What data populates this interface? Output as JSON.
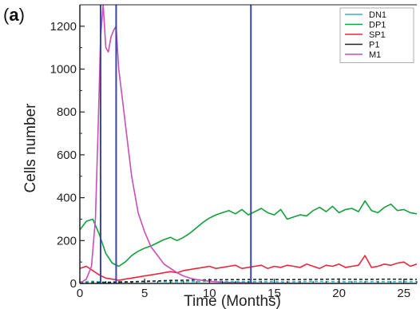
{
  "panel": {
    "open": "(",
    "letter": "a",
    "close": ")"
  },
  "colors": {
    "DN1": "#2fb7c4",
    "DP1": "#14a03c",
    "SP1": "#e8283a",
    "P1": "#222222",
    "M1": "#c84fb5",
    "marker": "#3a46a8",
    "axis": "#222222"
  },
  "chart_data": {
    "type": "line",
    "title": "",
    "xlabel": "Time (Months)",
    "ylabel": "Cells number",
    "xlim": [
      0,
      26
    ],
    "ylim": [
      0,
      1300
    ],
    "xticks": [
      0,
      5,
      10,
      15,
      20,
      25
    ],
    "yticks": [
      0,
      200,
      400,
      600,
      800,
      1000,
      1200
    ],
    "grid": false,
    "legend_position": "top-right",
    "vertical_markers": [
      1.6,
      2.8,
      13.2
    ],
    "series": [
      {
        "name": "DN1",
        "x": [
          0,
          1,
          2,
          3,
          4,
          5,
          6,
          7,
          8,
          9,
          10,
          12,
          14,
          16,
          18,
          20,
          22,
          24,
          26
        ],
        "y": [
          8,
          10,
          6,
          9,
          7,
          8,
          10,
          7,
          9,
          8,
          10,
          8,
          9,
          7,
          10,
          8,
          9,
          8,
          9
        ]
      },
      {
        "name": "DP1",
        "x": [
          0,
          0.5,
          1,
          1.5,
          2,
          2.5,
          3,
          3.5,
          4,
          4.5,
          5,
          5.5,
          6,
          6.5,
          7,
          7.5,
          8,
          8.5,
          9,
          9.5,
          10,
          10.5,
          11,
          11.5,
          12,
          12.5,
          13,
          13.5,
          14,
          14.5,
          15,
          15.5,
          16,
          16.5,
          17,
          17.5,
          18,
          18.5,
          19,
          19.5,
          20,
          20.5,
          21,
          21.5,
          22,
          22.5,
          23,
          23.5,
          24,
          24.5,
          25,
          25.5,
          26
        ],
        "y": [
          250,
          290,
          300,
          230,
          140,
          95,
          80,
          100,
          130,
          150,
          165,
          175,
          190,
          205,
          215,
          200,
          215,
          235,
          260,
          285,
          305,
          320,
          330,
          340,
          325,
          345,
          320,
          335,
          350,
          330,
          320,
          345,
          300,
          310,
          320,
          315,
          340,
          355,
          335,
          360,
          330,
          345,
          350,
          335,
          385,
          340,
          330,
          355,
          370,
          340,
          345,
          330,
          325
        ]
      },
      {
        "name": "SP1",
        "x": [
          0,
          0.5,
          1,
          1.5,
          2,
          2.5,
          3,
          3.5,
          4,
          4.5,
          5,
          5.5,
          6,
          6.5,
          7,
          7.5,
          8,
          8.5,
          9,
          9.5,
          10,
          10.5,
          11,
          11.5,
          12,
          12.5,
          13,
          13.5,
          14,
          14.5,
          15,
          15.5,
          16,
          16.5,
          17,
          17.5,
          18,
          18.5,
          19,
          19.5,
          20,
          20.5,
          21,
          21.5,
          22,
          22.5,
          23,
          23.5,
          24,
          24.5,
          25,
          25.5,
          26
        ],
        "y": [
          70,
          80,
          60,
          40,
          25,
          20,
          15,
          20,
          25,
          30,
          35,
          40,
          45,
          50,
          55,
          50,
          60,
          65,
          70,
          75,
          80,
          70,
          75,
          80,
          85,
          70,
          75,
          80,
          85,
          70,
          80,
          75,
          85,
          80,
          75,
          90,
          80,
          70,
          85,
          80,
          90,
          75,
          80,
          85,
          130,
          75,
          80,
          90,
          85,
          95,
          100,
          80,
          90
        ]
      },
      {
        "name": "P1",
        "x": [
          0,
          1,
          2,
          3,
          4,
          5,
          6,
          7,
          8,
          9,
          10,
          12,
          14,
          16,
          18,
          20,
          22,
          24,
          26
        ],
        "y": [
          2,
          3,
          4,
          6,
          8,
          10,
          12,
          14,
          15,
          16,
          17,
          18,
          19,
          18,
          19,
          20,
          19,
          20,
          19
        ]
      },
      {
        "name": "M1",
        "x": [
          0,
          0.5,
          0.9,
          1.2,
          1.4,
          1.6,
          1.8,
          2.0,
          2.2,
          2.4,
          2.6,
          2.8,
          3.0,
          3.3,
          3.6,
          4.0,
          4.5,
          5.0,
          5.5,
          6.0,
          6.5,
          7.0,
          7.5,
          8.0,
          8.5,
          9.0,
          10,
          11,
          12,
          13,
          14,
          16,
          18,
          20,
          22,
          24,
          26
        ],
        "y": [
          0,
          20,
          80,
          300,
          700,
          1150,
          1300,
          1100,
          1080,
          1150,
          1180,
          1200,
          1000,
          850,
          700,
          500,
          330,
          240,
          170,
          130,
          90,
          70,
          50,
          35,
          25,
          18,
          10,
          6,
          4,
          3,
          2,
          1,
          1,
          0,
          0,
          0,
          0
        ]
      }
    ]
  }
}
